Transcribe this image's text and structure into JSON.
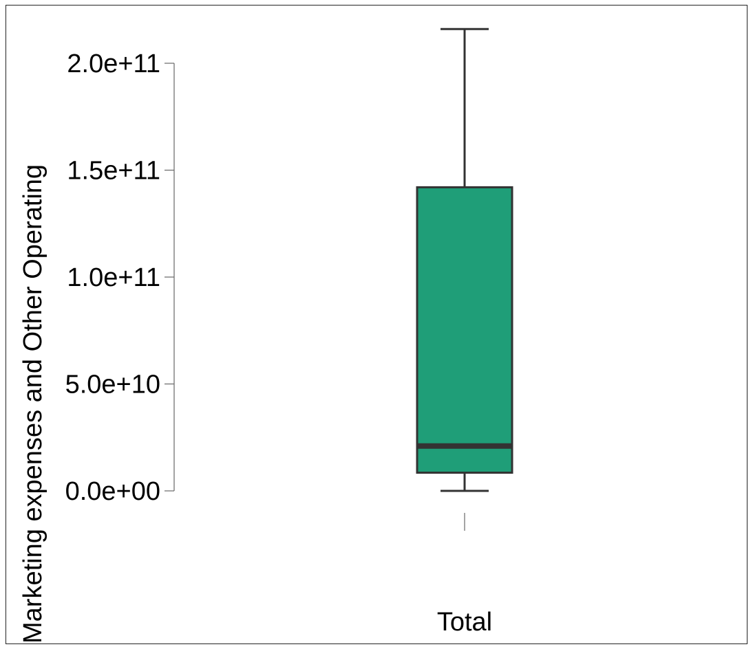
{
  "chart_data": {
    "type": "boxplot",
    "title": "",
    "xlabel": "",
    "ylabel": "Marketing expenses and Other Operating",
    "categories": [
      "Total"
    ],
    "yticks": [
      0,
      50000000000,
      100000000000,
      150000000000,
      200000000000
    ],
    "ytick_labels": [
      "0.0e+00",
      "5.0e+10",
      "1.0e+11",
      "1.5e+11",
      "2.0e+11"
    ],
    "ylim": [
      0,
      215000000000
    ],
    "boxes": [
      {
        "category": "Total",
        "whisker_low": 0,
        "q1": 8500000000,
        "median": 21000000000,
        "q3": 142000000000,
        "whisker_high": 216000000000
      }
    ],
    "colors": {
      "box_fill": "#1f9e78",
      "box_stroke": "#333333",
      "median": "#333333"
    },
    "grid": false,
    "legend": "none"
  }
}
